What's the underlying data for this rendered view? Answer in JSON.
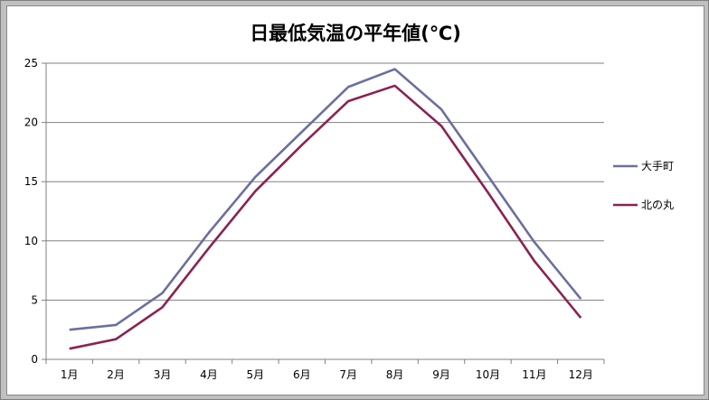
{
  "chart_data": {
    "type": "line",
    "title": "日最低気温の平年値(℃)",
    "xlabel": "",
    "ylabel": "",
    "categories": [
      "1月",
      "2月",
      "3月",
      "4月",
      "5月",
      "6月",
      "7月",
      "8月",
      "9月",
      "10月",
      "11月",
      "12月"
    ],
    "ylim": [
      0,
      25
    ],
    "yticks": [
      "0",
      "5",
      "10",
      "15",
      "20",
      "25"
    ],
    "grid": true,
    "legend_position": "right",
    "series": [
      {
        "name": "大手町",
        "color": "#6b6fa0",
        "values": [
          2.5,
          2.9,
          5.6,
          10.7,
          15.4,
          19.2,
          23.0,
          24.5,
          21.1,
          15.5,
          9.9,
          5.1
        ]
      },
      {
        "name": "北の丸",
        "color": "#8b2252",
        "values": [
          0.9,
          1.7,
          4.4,
          9.4,
          14.2,
          18.1,
          21.8,
          23.1,
          19.7,
          14.1,
          8.3,
          3.5
        ]
      }
    ]
  }
}
